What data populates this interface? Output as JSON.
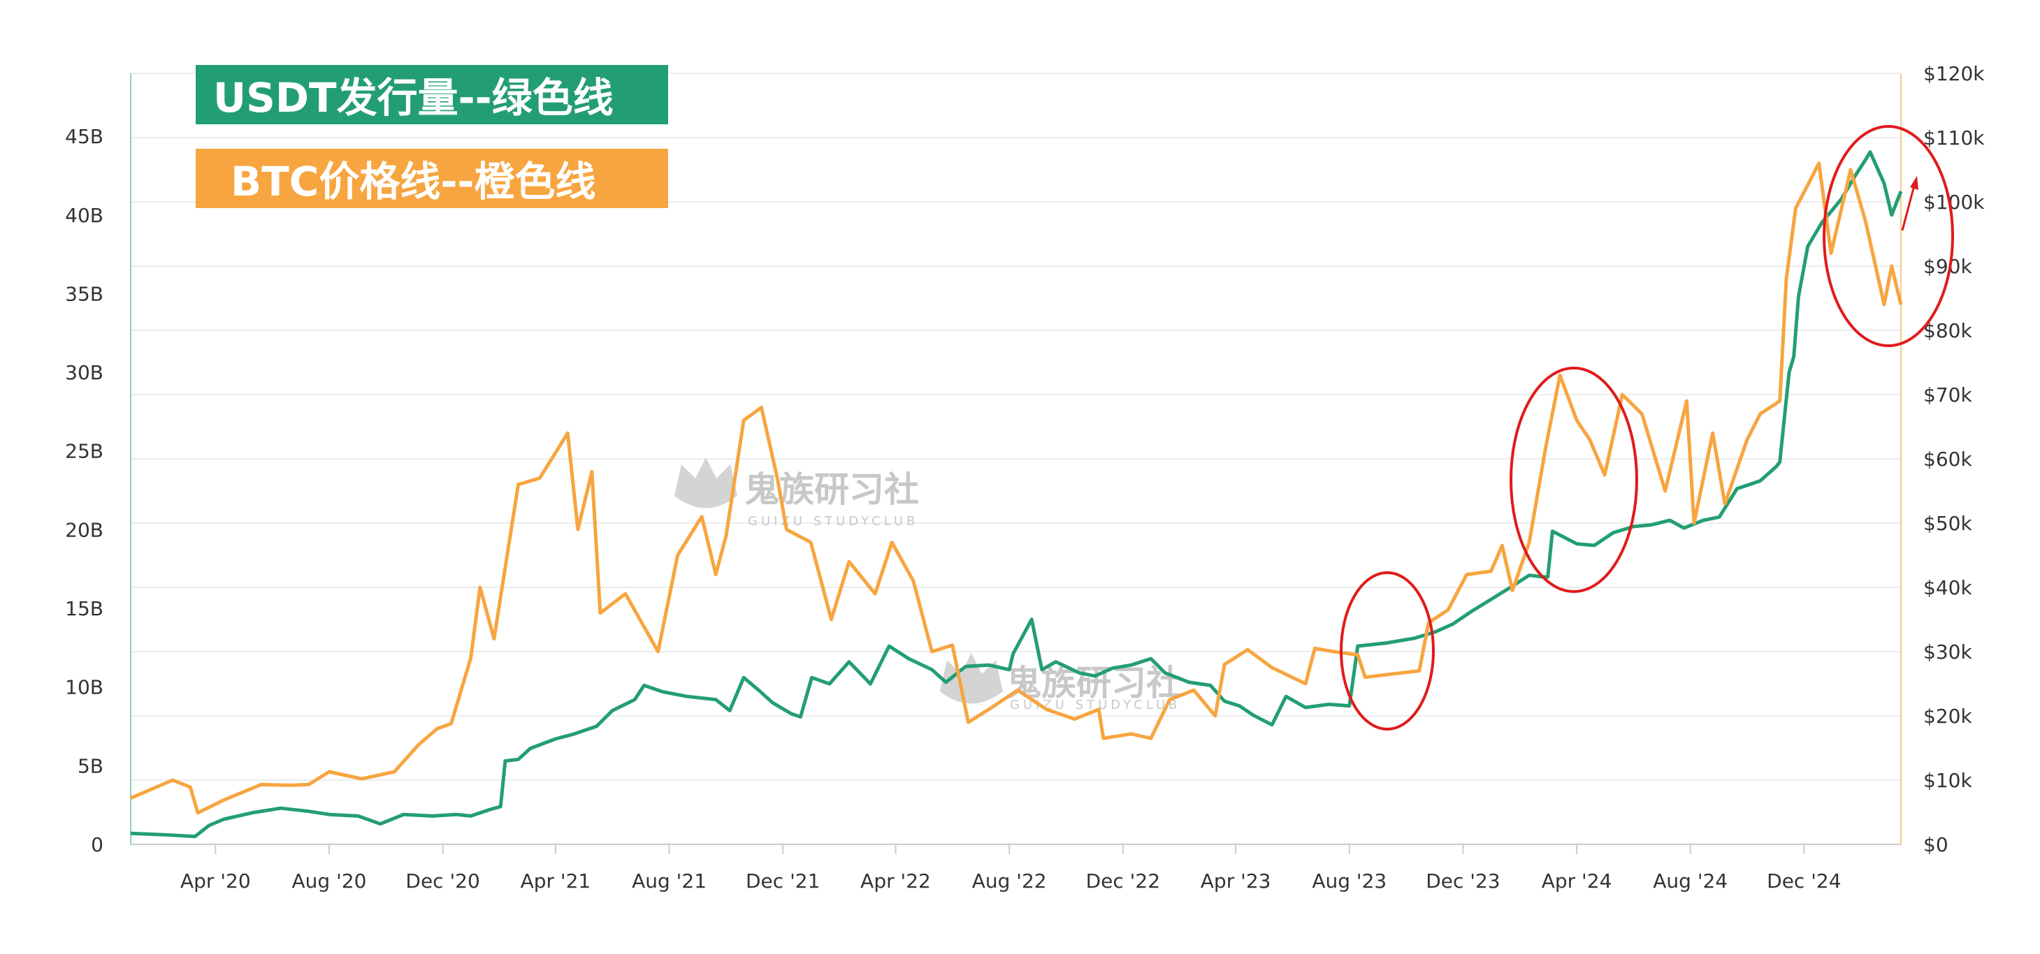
{
  "chart_data": {
    "type": "line",
    "title": "",
    "legend": [
      {
        "label": "USDT发行量--绿色线",
        "color": "#239e73"
      },
      {
        "label": "BTC价格线--橙色线",
        "color": "#f7a540"
      }
    ],
    "legend_placement": "top-left",
    "x_range": [
      "2020-01-01",
      "2025-03-15"
    ],
    "x_ticks": [
      {
        "label": "Apr '20",
        "date": "2020-04-01"
      },
      {
        "label": "Aug '20",
        "date": "2020-08-01"
      },
      {
        "label": "Dec '20",
        "date": "2020-12-01"
      },
      {
        "label": "Apr '21",
        "date": "2021-04-01"
      },
      {
        "label": "Aug '21",
        "date": "2021-08-01"
      },
      {
        "label": "Dec '21",
        "date": "2021-12-01"
      },
      {
        "label": "Apr '22",
        "date": "2022-04-01"
      },
      {
        "label": "Aug '22",
        "date": "2022-08-01"
      },
      {
        "label": "Dec '22",
        "date": "2022-12-01"
      },
      {
        "label": "Apr '23",
        "date": "2023-04-01"
      },
      {
        "label": "Aug '23",
        "date": "2023-08-01"
      },
      {
        "label": "Dec '23",
        "date": "2023-12-01"
      },
      {
        "label": "Apr '24",
        "date": "2024-04-01"
      },
      {
        "label": "Aug '24",
        "date": "2024-08-01"
      },
      {
        "label": "Dec '24",
        "date": "2024-12-01"
      }
    ],
    "y_left": {
      "ylim": [
        0,
        49
      ],
      "ticks": [
        0,
        5,
        10,
        15,
        20,
        25,
        30,
        35,
        40,
        45
      ],
      "tick_labels": [
        "0",
        "5B",
        "10B",
        "15B",
        "20B",
        "25B",
        "30B",
        "35B",
        "40B",
        "45B"
      ],
      "color": "#239e73"
    },
    "y_right": {
      "ylim": [
        0,
        120000
      ],
      "ticks": [
        0,
        10000,
        20000,
        30000,
        40000,
        50000,
        60000,
        70000,
        80000,
        90000,
        100000,
        110000,
        120000
      ],
      "tick_labels": [
        "$0",
        "$10k",
        "$20k",
        "$30k",
        "$40k",
        "$50k",
        "$60k",
        "$70k",
        "$80k",
        "$90k",
        "$100k",
        "$110k",
        "$120k"
      ],
      "color": "#f7a540"
    },
    "grid": true,
    "series": [
      {
        "name": "USDT发行量--绿色线",
        "axis": "left",
        "color": "#239e73",
        "points": [
          [
            "2020-01-01",
            0.7
          ],
          [
            "2020-02-10",
            0.6
          ],
          [
            "2020-03-10",
            0.5
          ],
          [
            "2020-03-25",
            1.2
          ],
          [
            "2020-04-10",
            1.6
          ],
          [
            "2020-05-10",
            2.0
          ],
          [
            "2020-06-10",
            2.3
          ],
          [
            "2020-07-10",
            2.1
          ],
          [
            "2020-08-01",
            1.9
          ],
          [
            "2020-09-01",
            1.8
          ],
          [
            "2020-09-25",
            1.3
          ],
          [
            "2020-10-20",
            1.9
          ],
          [
            "2020-11-20",
            1.8
          ],
          [
            "2020-12-15",
            1.9
          ],
          [
            "2020-12-31",
            1.8
          ],
          [
            "2021-01-20",
            2.2
          ],
          [
            "2021-02-01",
            2.4
          ],
          [
            "2021-02-06",
            5.3
          ],
          [
            "2021-02-20",
            5.4
          ],
          [
            "2021-03-05",
            6.1
          ],
          [
            "2021-04-01",
            6.7
          ],
          [
            "2021-04-20",
            7.0
          ],
          [
            "2021-05-15",
            7.5
          ],
          [
            "2021-06-01",
            8.5
          ],
          [
            "2021-06-25",
            9.2
          ],
          [
            "2021-07-05",
            10.1
          ],
          [
            "2021-07-25",
            9.7
          ],
          [
            "2021-08-20",
            9.4
          ],
          [
            "2021-09-20",
            9.2
          ],
          [
            "2021-10-05",
            8.5
          ],
          [
            "2021-10-20",
            10.6
          ],
          [
            "2021-11-05",
            9.8
          ],
          [
            "2021-11-20",
            9.0
          ],
          [
            "2021-12-10",
            8.3
          ],
          [
            "2021-12-20",
            8.1
          ],
          [
            "2022-01-01",
            10.6
          ],
          [
            "2022-01-20",
            10.2
          ],
          [
            "2022-02-10",
            11.6
          ],
          [
            "2022-03-05",
            10.2
          ],
          [
            "2022-03-25",
            12.6
          ],
          [
            "2022-04-15",
            11.8
          ],
          [
            "2022-05-10",
            11.1
          ],
          [
            "2022-05-25",
            10.3
          ],
          [
            "2022-06-15",
            11.3
          ],
          [
            "2022-07-10",
            11.4
          ],
          [
            "2022-08-01",
            11.1
          ],
          [
            "2022-08-05",
            12.1
          ],
          [
            "2022-08-25",
            14.3
          ],
          [
            "2022-09-05",
            11.1
          ],
          [
            "2022-09-20",
            11.6
          ],
          [
            "2022-10-15",
            10.9
          ],
          [
            "2022-11-01",
            10.7
          ],
          [
            "2022-11-20",
            11.2
          ],
          [
            "2022-12-10",
            11.4
          ],
          [
            "2022-12-31",
            11.8
          ],
          [
            "2023-01-15",
            10.9
          ],
          [
            "2023-02-10",
            10.3
          ],
          [
            "2023-03-05",
            10.1
          ],
          [
            "2023-03-20",
            9.1
          ],
          [
            "2023-04-05",
            8.8
          ],
          [
            "2023-04-20",
            8.2
          ],
          [
            "2023-05-10",
            7.6
          ],
          [
            "2023-05-25",
            9.4
          ],
          [
            "2023-06-15",
            8.7
          ],
          [
            "2023-07-10",
            8.9
          ],
          [
            "2023-08-01",
            8.8
          ],
          [
            "2023-08-10",
            12.6
          ],
          [
            "2023-09-10",
            12.8
          ],
          [
            "2023-10-10",
            13.1
          ],
          [
            "2023-11-01",
            13.5
          ],
          [
            "2023-11-20",
            14.0
          ],
          [
            "2023-12-10",
            14.8
          ],
          [
            "2024-01-01",
            15.6
          ],
          [
            "2024-01-20",
            16.3
          ],
          [
            "2024-02-10",
            17.1
          ],
          [
            "2024-02-25",
            17.0
          ],
          [
            "2024-03-01",
            17.0
          ],
          [
            "2024-03-06",
            19.9
          ],
          [
            "2024-04-01",
            19.1
          ],
          [
            "2024-04-20",
            19.0
          ],
          [
            "2024-05-10",
            19.8
          ],
          [
            "2024-06-01",
            20.2
          ],
          [
            "2024-06-20",
            20.3
          ],
          [
            "2024-07-10",
            20.6
          ],
          [
            "2024-07-25",
            20.1
          ],
          [
            "2024-08-15",
            20.6
          ],
          [
            "2024-09-01",
            20.8
          ],
          [
            "2024-09-20",
            22.6
          ],
          [
            "2024-10-15",
            23.1
          ],
          [
            "2024-11-01",
            24.0
          ],
          [
            "2024-11-05",
            24.3
          ],
          [
            "2024-11-15",
            30.0
          ],
          [
            "2024-11-20",
            31.0
          ],
          [
            "2024-11-25",
            34.8
          ],
          [
            "2024-12-05",
            38.0
          ],
          [
            "2024-12-20",
            39.5
          ],
          [
            "2025-01-10",
            41.0
          ],
          [
            "2025-01-25",
            42.5
          ],
          [
            "2025-02-05",
            43.5
          ],
          [
            "2025-02-10",
            44.0
          ],
          [
            "2025-02-25",
            42.0
          ],
          [
            "2025-03-05",
            40.0
          ],
          [
            "2025-03-15",
            41.5
          ]
        ]
      },
      {
        "name": "BTC价格线--橙色线",
        "axis": "right",
        "color": "#f7a540",
        "points": [
          [
            "2020-01-01",
            7200
          ],
          [
            "2020-02-15",
            10000
          ],
          [
            "2020-03-05",
            8900
          ],
          [
            "2020-03-13",
            4900
          ],
          [
            "2020-04-10",
            6900
          ],
          [
            "2020-05-20",
            9300
          ],
          [
            "2020-06-20",
            9200
          ],
          [
            "2020-07-10",
            9300
          ],
          [
            "2020-08-01",
            11300
          ],
          [
            "2020-09-05",
            10200
          ],
          [
            "2020-10-10",
            11300
          ],
          [
            "2020-11-05",
            15500
          ],
          [
            "2020-11-25",
            18000
          ],
          [
            "2020-12-10",
            18800
          ],
          [
            "2020-12-31",
            29000
          ],
          [
            "2021-01-10",
            40000
          ],
          [
            "2021-01-25",
            32000
          ],
          [
            "2021-02-20",
            56000
          ],
          [
            "2021-03-15",
            57000
          ],
          [
            "2021-04-14",
            64000
          ],
          [
            "2021-04-25",
            49000
          ],
          [
            "2021-05-10",
            58000
          ],
          [
            "2021-05-19",
            36000
          ],
          [
            "2021-06-15",
            39000
          ],
          [
            "2021-07-20",
            30000
          ],
          [
            "2021-08-10",
            45000
          ],
          [
            "2021-09-05",
            51000
          ],
          [
            "2021-09-20",
            42000
          ],
          [
            "2021-10-01",
            48000
          ],
          [
            "2021-10-20",
            66000
          ],
          [
            "2021-11-08",
            68000
          ],
          [
            "2021-11-25",
            57000
          ],
          [
            "2021-12-05",
            49000
          ],
          [
            "2021-12-31",
            47000
          ],
          [
            "2022-01-22",
            35000
          ],
          [
            "2022-02-10",
            44000
          ],
          [
            "2022-03-10",
            39000
          ],
          [
            "2022-03-28",
            47000
          ],
          [
            "2022-04-20",
            41000
          ],
          [
            "2022-05-10",
            30000
          ],
          [
            "2022-06-01",
            31000
          ],
          [
            "2022-06-18",
            19000
          ],
          [
            "2022-07-10",
            21000
          ],
          [
            "2022-08-10",
            24000
          ],
          [
            "2022-09-10",
            21000
          ],
          [
            "2022-10-10",
            19500
          ],
          [
            "2022-11-05",
            21000
          ],
          [
            "2022-11-10",
            16500
          ],
          [
            "2022-12-10",
            17200
          ],
          [
            "2022-12-31",
            16500
          ],
          [
            "2023-01-20",
            22500
          ],
          [
            "2023-02-15",
            24000
          ],
          [
            "2023-03-10",
            20000
          ],
          [
            "2023-03-20",
            28000
          ],
          [
            "2023-04-14",
            30300
          ],
          [
            "2023-05-10",
            27500
          ],
          [
            "2023-06-15",
            25000
          ],
          [
            "2023-06-25",
            30500
          ],
          [
            "2023-07-15",
            30000
          ],
          [
            "2023-08-10",
            29500
          ],
          [
            "2023-08-18",
            26000
          ],
          [
            "2023-09-15",
            26500
          ],
          [
            "2023-10-15",
            27000
          ],
          [
            "2023-10-25",
            34500
          ],
          [
            "2023-11-15",
            36500
          ],
          [
            "2023-12-05",
            42000
          ],
          [
            "2023-12-31",
            42500
          ],
          [
            "2024-01-12",
            46500
          ],
          [
            "2024-01-23",
            39500
          ],
          [
            "2024-02-10",
            47000
          ],
          [
            "2024-02-28",
            62000
          ],
          [
            "2024-03-14",
            73000
          ],
          [
            "2024-04-01",
            66000
          ],
          [
            "2024-04-15",
            63000
          ],
          [
            "2024-05-01",
            57500
          ],
          [
            "2024-05-20",
            70000
          ],
          [
            "2024-06-10",
            67000
          ],
          [
            "2024-07-05",
            55000
          ],
          [
            "2024-07-28",
            69000
          ],
          [
            "2024-08-05",
            50000
          ],
          [
            "2024-08-25",
            64000
          ],
          [
            "2024-09-07",
            53000
          ],
          [
            "2024-10-01",
            63000
          ],
          [
            "2024-10-15",
            67000
          ],
          [
            "2024-11-05",
            69000
          ],
          [
            "2024-11-12",
            88000
          ],
          [
            "2024-11-22",
            99000
          ],
          [
            "2024-12-17",
            106000
          ],
          [
            "2024-12-30",
            92000
          ],
          [
            "2025-01-20",
            105000
          ],
          [
            "2025-02-05",
            97000
          ],
          [
            "2025-02-25",
            84000
          ],
          [
            "2025-03-05",
            90000
          ],
          [
            "2025-03-15",
            84000
          ]
        ]
      }
    ]
  },
  "watermark": {
    "name": "鬼族研习社",
    "sub": "GUIZU STUDYCLUB"
  }
}
